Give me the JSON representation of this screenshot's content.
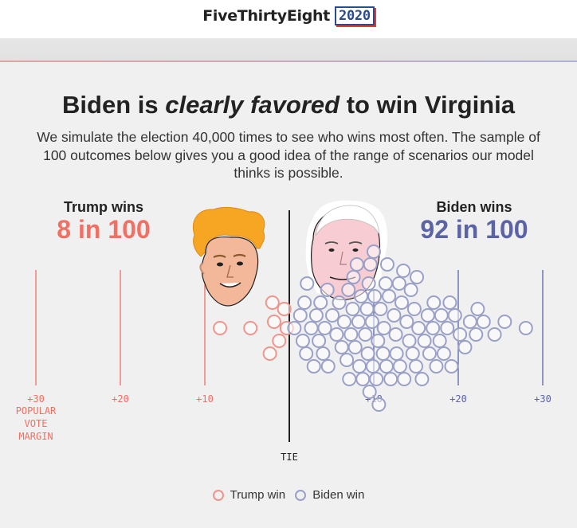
{
  "header": {
    "brand_name": "FiveThirtyEight",
    "brand_year": "2020"
  },
  "headline": {
    "part1": "Biden is ",
    "emphasis": "clearly favored",
    "part2": " to win Virginia"
  },
  "dek": "We simulate the election 40,000 times to see who wins most often. The sample of 100 outcomes below gives you a good idea of the range of scenarios our model thinks is possible.",
  "trump": {
    "label": "Trump wins",
    "count": "8 in 100",
    "color": "#f16f63"
  },
  "biden": {
    "label": "Biden wins",
    "count": "92 in 100",
    "color": "#5b63a7"
  },
  "axis": {
    "ticks": [
      "+30",
      "+20",
      "+10",
      "+10",
      "+20",
      "+30"
    ],
    "axis_title": [
      "POPULAR",
      "VOTE",
      "MARGIN"
    ],
    "tie_label": "TIE"
  },
  "legend": {
    "trump_label": "Trump win",
    "biden_label": "Biden win"
  },
  "chart_data": {
    "type": "scatter",
    "title": "Biden is clearly favored to win Virginia",
    "xlabel": "POPULAR VOTE MARGIN",
    "x_tick_labels": [
      "+30",
      "+20",
      "+10",
      "TIE",
      "+10",
      "+20",
      "+30"
    ],
    "xlim": [
      -35,
      35
    ],
    "series": [
      {
        "name": "Trump win",
        "values": [
          -8.2,
          -4.6,
          -2.3,
          -2.0,
          -1.8,
          -1.2,
          -0.6,
          -0.3
        ]
      },
      {
        "name": "Biden win",
        "values": [
          0.6,
          1.3,
          1.6,
          1.8,
          2.0,
          2.1,
          2.6,
          2.9,
          3.2,
          3.5,
          3.7,
          4.0,
          4.2,
          4.5,
          4.6,
          5.1,
          5.6,
          5.9,
          6.2,
          6.5,
          6.8,
          7.0,
          7.1,
          7.3,
          7.5,
          7.6,
          7.8,
          8.0,
          8.2,
          8.3,
          8.5,
          8.7,
          9.0,
          9.2,
          9.3,
          9.4,
          9.5,
          9.6,
          9.8,
          9.9,
          10.0,
          10.1,
          10.3,
          10.5,
          10.6,
          10.8,
          11.1,
          11.2,
          11.4,
          11.5,
          11.6,
          11.8,
          12.0,
          12.4,
          12.6,
          12.7,
          13.0,
          13.1,
          13.3,
          13.5,
          13.6,
          13.9,
          14.2,
          14.4,
          14.6,
          14.8,
          15.0,
          15.1,
          15.3,
          15.7,
          16.0,
          16.4,
          16.6,
          17.0,
          17.1,
          17.4,
          17.8,
          18.0,
          18.3,
          18.7,
          19.0,
          19.2,
          19.6,
          20.2,
          20.8,
          21.4,
          22.1,
          22.3,
          23.0,
          24.3,
          25.5,
          28.0
        ]
      }
    ],
    "grid": true,
    "legend_position": "bottom-center"
  }
}
